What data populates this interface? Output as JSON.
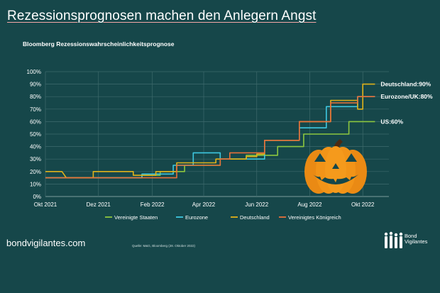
{
  "header": {
    "title": "Rezessionsprognosen machen den Anlegern Angst",
    "subtitle": "Bloomberg Rezessionswahrscheinlichkeitsprognose"
  },
  "footer": {
    "brand": "bondvigilantes.com",
    "source": "Quelle: M&G, Bloomberg (28. Oktober 2022)",
    "logo_line1": "Bond",
    "logo_line2": "Vigilantes",
    "pumpkin_icon": "jack-o-lantern-icon"
  },
  "chart_data": {
    "type": "line",
    "title": "Bloomberg Rezessionswahrscheinlichkeitsprognose",
    "xlabel": "",
    "ylabel": "",
    "x_ticks": [
      "Okt 2021",
      "Dez 2021",
      "Feb 2022",
      "Apr 2022",
      "Jun 2022",
      "Aug 2022",
      "Okt 2022"
    ],
    "xlim": [
      "2021-10-01",
      "2022-10-31"
    ],
    "y_ticks": [
      "0%",
      "10%",
      "20%",
      "30%",
      "40%",
      "50%",
      "60%",
      "70%",
      "80%",
      "90%",
      "100%"
    ],
    "ylim": [
      0,
      100
    ],
    "grid": true,
    "legend_position": "bottom",
    "series": [
      {
        "name": "Vereinigte Staaten",
        "color": "#8cc63f",
        "end_label": "US:60%",
        "points": [
          [
            "2021-10-01",
            15
          ],
          [
            "2022-01-20",
            15
          ],
          [
            "2022-01-20",
            17
          ],
          [
            "2022-02-10",
            17
          ],
          [
            "2022-02-10",
            20
          ],
          [
            "2022-03-10",
            20
          ],
          [
            "2022-03-10",
            25
          ],
          [
            "2022-04-20",
            25
          ],
          [
            "2022-04-20",
            30
          ],
          [
            "2022-05-20",
            30
          ],
          [
            "2022-05-20",
            33
          ],
          [
            "2022-06-25",
            33
          ],
          [
            "2022-06-25",
            40
          ],
          [
            "2022-07-25",
            40
          ],
          [
            "2022-07-25",
            50
          ],
          [
            "2022-09-15",
            50
          ],
          [
            "2022-09-15",
            60
          ],
          [
            "2022-10-15",
            60
          ]
        ]
      },
      {
        "name": "Eurozone",
        "color": "#3ec7e0",
        "end_label": "",
        "points": [
          [
            "2021-10-01",
            15
          ],
          [
            "2022-01-20",
            15
          ],
          [
            "2022-01-20",
            18
          ],
          [
            "2022-02-25",
            18
          ],
          [
            "2022-02-25",
            25
          ],
          [
            "2022-03-20",
            25
          ],
          [
            "2022-03-20",
            35
          ],
          [
            "2022-04-20",
            35
          ],
          [
            "2022-04-20",
            30
          ],
          [
            "2022-06-10",
            30
          ],
          [
            "2022-06-10",
            45
          ],
          [
            "2022-07-20",
            45
          ],
          [
            "2022-07-20",
            55
          ],
          [
            "2022-08-20",
            55
          ],
          [
            "2022-08-20",
            72
          ],
          [
            "2022-09-25",
            72
          ],
          [
            "2022-09-25",
            80
          ],
          [
            "2022-10-15",
            80
          ]
        ]
      },
      {
        "name": "Deutschland",
        "color": "#e0b21a",
        "end_label": "Deutschland:90%",
        "points": [
          [
            "2021-10-01",
            20
          ],
          [
            "2021-10-20",
            20
          ],
          [
            "2021-10-25",
            15
          ],
          [
            "2021-11-25",
            15
          ],
          [
            "2021-11-25",
            20
          ],
          [
            "2022-01-10",
            20
          ],
          [
            "2022-01-10",
            17
          ],
          [
            "2022-02-05",
            17
          ],
          [
            "2022-02-05",
            20
          ],
          [
            "2022-03-01",
            20
          ],
          [
            "2022-03-01",
            27
          ],
          [
            "2022-04-15",
            27
          ],
          [
            "2022-04-15",
            30
          ],
          [
            "2022-05-20",
            30
          ],
          [
            "2022-05-20",
            32
          ],
          [
            "2022-06-01",
            32
          ],
          [
            "2022-06-01",
            34
          ],
          [
            "2022-06-10",
            34
          ],
          [
            "2022-06-10",
            45
          ],
          [
            "2022-07-20",
            45
          ],
          [
            "2022-07-20",
            60
          ],
          [
            "2022-08-25",
            60
          ],
          [
            "2022-08-25",
            77
          ],
          [
            "2022-09-25",
            77
          ],
          [
            "2022-09-25",
            70
          ],
          [
            "2022-10-01",
            70
          ],
          [
            "2022-10-01",
            90
          ],
          [
            "2022-10-15",
            90
          ]
        ]
      },
      {
        "name": "Vereinigtes Königreich",
        "color": "#e8703a",
        "end_label": "Eurozone/UK:80%",
        "points": [
          [
            "2021-10-01",
            15
          ],
          [
            "2022-03-01",
            15
          ],
          [
            "2022-03-01",
            25
          ],
          [
            "2022-04-20",
            25
          ],
          [
            "2022-04-20",
            30
          ],
          [
            "2022-05-01",
            30
          ],
          [
            "2022-05-01",
            35
          ],
          [
            "2022-06-10",
            35
          ],
          [
            "2022-06-10",
            45
          ],
          [
            "2022-07-20",
            45
          ],
          [
            "2022-07-20",
            60
          ],
          [
            "2022-08-25",
            60
          ],
          [
            "2022-08-25",
            75
          ],
          [
            "2022-09-25",
            75
          ],
          [
            "2022-09-25",
            80
          ],
          [
            "2022-10-15",
            80
          ]
        ]
      }
    ]
  }
}
